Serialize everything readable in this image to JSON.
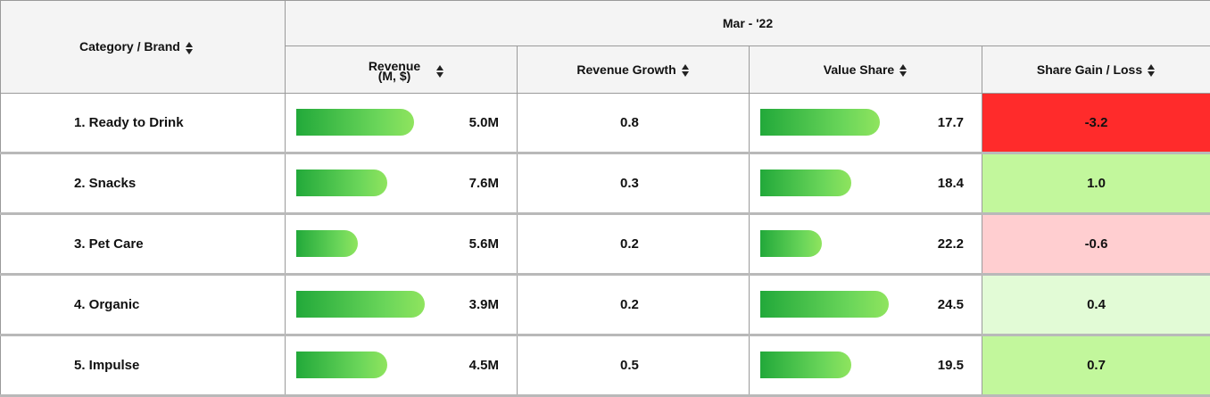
{
  "table": {
    "period_label": "Mar - '22",
    "columns": {
      "category": "Category / Brand",
      "revenue": "Revenue (M, $)",
      "revenue_growth": "Revenue Growth",
      "value_share": "Value Share",
      "share_gain": "Share Gain / Loss"
    },
    "rows": [
      {
        "category": "1. Ready to Drink",
        "revenue": "5.0M",
        "revenue_bar": 0.8,
        "revenue_growth": "0.8",
        "value_share": "17.7",
        "value_share_bar": 0.81,
        "share_gain": "-3.2",
        "gain_color": "#ff2b2b"
      },
      {
        "category": "2. Snacks",
        "revenue": "7.6M",
        "revenue_bar": 0.62,
        "revenue_growth": "0.3",
        "value_share": "18.4",
        "value_share_bar": 0.62,
        "share_gain": "1.0",
        "gain_color": "#c2f79c"
      },
      {
        "category": "3. Pet Care",
        "revenue": "5.6M",
        "revenue_bar": 0.42,
        "revenue_growth": "0.2",
        "value_share": "22.2",
        "value_share_bar": 0.42,
        "share_gain": "-0.6",
        "gain_color": "#ffced0"
      },
      {
        "category": "4. Organic",
        "revenue": "3.9M",
        "revenue_bar": 0.87,
        "revenue_growth": "0.2",
        "value_share": "24.5",
        "value_share_bar": 0.87,
        "share_gain": "0.4",
        "gain_color": "#e2fbd6"
      },
      {
        "category": "5. Impulse",
        "revenue": "4.5M",
        "revenue_bar": 0.62,
        "revenue_growth": "0.5",
        "value_share": "19.5",
        "value_share_bar": 0.62,
        "share_gain": "0.7",
        "gain_color": "#c2f79c"
      }
    ]
  },
  "colors": {
    "bar_gradient_start": "#22a93a",
    "bar_gradient_end": "#8fe45e",
    "header_background": "#f4f4f4"
  }
}
